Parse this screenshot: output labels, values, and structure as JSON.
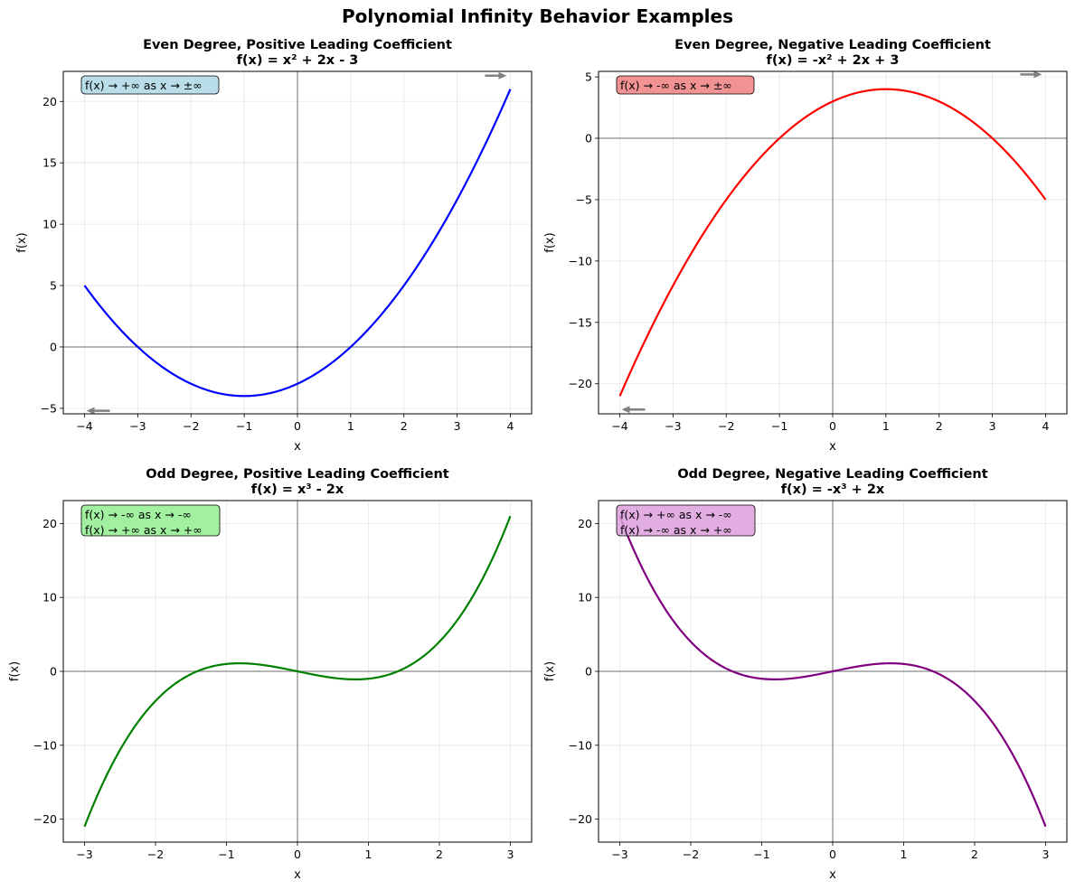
{
  "figure": {
    "title": "Polynomial Infinity Behavior Examples"
  },
  "chart_data": [
    {
      "type": "line",
      "title": "Even Degree, Positive Leading Coefficient",
      "subtitle": "f(x) = x² + 2x - 3",
      "xlabel": "x",
      "ylabel": "f(x)",
      "xlim": [
        -4.4,
        4.4
      ],
      "ylim": [
        -5.45,
        22.45
      ],
      "xticks": [
        -4,
        -3,
        -2,
        -1,
        0,
        1,
        2,
        3,
        4
      ],
      "yticks": [
        -5,
        0,
        5,
        10,
        15,
        20
      ],
      "grid": true,
      "color": "#0000ff",
      "coefficients": [
        1,
        2,
        -3
      ],
      "x_range": [
        -4,
        4
      ],
      "series": [
        {
          "x": [
            -4,
            -3.5,
            -3,
            -2.5,
            -2,
            -1.5,
            -1,
            -0.5,
            0,
            0.5,
            1,
            1.5,
            2,
            2.5,
            3,
            3.5,
            4
          ],
          "y": [
            5,
            2.25,
            0,
            -1.75,
            -3,
            -3.75,
            -4,
            -3.75,
            -3,
            -1.75,
            0,
            2.25,
            5,
            8.25,
            12,
            16.25,
            21
          ]
        }
      ],
      "annotation": {
        "lines": [
          "f(x) → +∞ as x → ±∞"
        ],
        "box_color": "#add8e6"
      },
      "arrows": [
        {
          "direction": "right",
          "x": 4,
          "y": 22.1
        },
        {
          "direction": "left",
          "x": -4,
          "y": -5.2
        }
      ]
    },
    {
      "type": "line",
      "title": "Even Degree, Negative Leading Coefficient",
      "subtitle": "f(x) = -x² + 2x + 3",
      "xlabel": "x",
      "ylabel": "f(x)",
      "xlim": [
        -4.4,
        4.4
      ],
      "ylim": [
        -22.45,
        5.45
      ],
      "xticks": [
        -4,
        -3,
        -2,
        -1,
        0,
        1,
        2,
        3,
        4
      ],
      "yticks": [
        -20,
        -15,
        -10,
        -5,
        0,
        5
      ],
      "grid": true,
      "color": "#ff0000",
      "coefficients": [
        -1,
        2,
        3
      ],
      "x_range": [
        -4,
        4
      ],
      "series": [
        {
          "x": [
            -4,
            -3.5,
            -3,
            -2.5,
            -2,
            -1.5,
            -1,
            -0.5,
            0,
            0.5,
            1,
            1.5,
            2,
            2.5,
            3,
            3.5,
            4
          ],
          "y": [
            -21,
            -16.25,
            -12,
            -8.25,
            -5,
            -2.25,
            0,
            1.75,
            3,
            3.75,
            4,
            3.75,
            3,
            1.75,
            0,
            -2.25,
            -5
          ]
        }
      ],
      "annotation": {
        "lines": [
          "f(x) → -∞ as x → ±∞"
        ],
        "box_color": "#f08080"
      },
      "arrows": [
        {
          "direction": "right",
          "x": 4,
          "y": 5.2
        },
        {
          "direction": "left",
          "x": -4,
          "y": -22.1
        }
      ]
    },
    {
      "type": "line",
      "title": "Odd Degree, Positive Leading Coefficient",
      "subtitle": "f(x) = x³ - 2x",
      "xlabel": "x",
      "ylabel": "f(x)",
      "xlim": [
        -3.3,
        3.3
      ],
      "ylim": [
        -23.1,
        23.1
      ],
      "xticks": [
        -3,
        -2,
        -1,
        0,
        1,
        2,
        3
      ],
      "yticks": [
        -20,
        -10,
        0,
        10,
        20
      ],
      "grid": true,
      "color": "#008000",
      "coefficients": [
        1,
        0,
        -2,
        0
      ],
      "x_range": [
        -3,
        3
      ],
      "series": [
        {
          "x": [
            -3,
            -2.5,
            -2,
            -1.5,
            -1,
            -0.5,
            0,
            0.5,
            1,
            1.5,
            2,
            2.5,
            3
          ],
          "y": [
            -21,
            -10.625,
            -4,
            -0.375,
            1,
            0.875,
            0,
            -0.875,
            -1,
            0.375,
            4,
            10.625,
            21
          ]
        }
      ],
      "annotation": {
        "lines": [
          "f(x) → -∞ as x → -∞",
          "f(x) → +∞ as x → +∞"
        ],
        "box_color": "#90ee90"
      },
      "arrows": []
    },
    {
      "type": "line",
      "title": "Odd Degree, Negative Leading Coefficient",
      "subtitle": "f(x) = -x³ + 2x",
      "xlabel": "x",
      "ylabel": "f(x)",
      "xlim": [
        -3.3,
        3.3
      ],
      "ylim": [
        -23.1,
        23.1
      ],
      "xticks": [
        -3,
        -2,
        -1,
        0,
        1,
        2,
        3
      ],
      "yticks": [
        -20,
        -10,
        0,
        10,
        20
      ],
      "grid": true,
      "color": "#800080",
      "coefficients": [
        -1,
        0,
        2,
        0
      ],
      "x_range": [
        -3,
        3
      ],
      "series": [
        {
          "x": [
            -3,
            -2.5,
            -2,
            -1.5,
            -1,
            -0.5,
            0,
            0.5,
            1,
            1.5,
            2,
            2.5,
            3
          ],
          "y": [
            21,
            10.625,
            4,
            0.375,
            -1,
            -0.875,
            0,
            0.875,
            1,
            -0.375,
            -4,
            -10.625,
            -21
          ]
        }
      ],
      "annotation": {
        "lines": [
          "f(x) → +∞ as x → -∞",
          "f(x) → -∞ as x → +∞"
        ],
        "box_color": "#dda0dd"
      },
      "arrows": []
    }
  ]
}
